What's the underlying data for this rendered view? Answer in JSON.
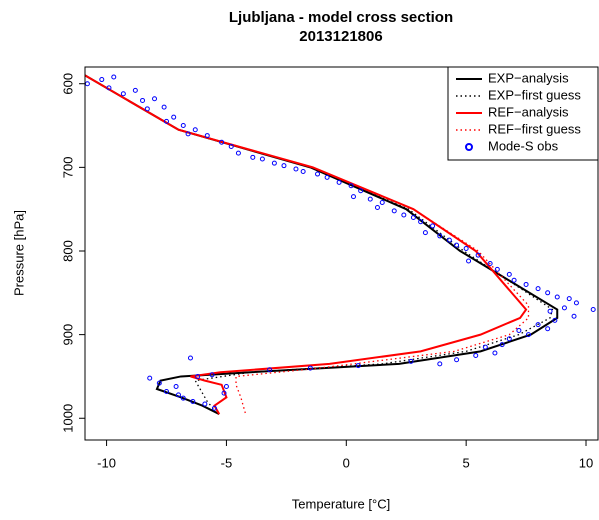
{
  "chart_data": {
    "type": "line",
    "title": "Ljubljana - model cross section",
    "subtitle": "2013121806",
    "x_label": "Temperature [°C]",
    "y_label": "Pressure [hPa]",
    "xlim": [
      -10.9,
      10.5
    ],
    "ylim": [
      1026,
      580
    ],
    "xticks": [
      -10,
      -5,
      0,
      5,
      10
    ],
    "yticks": [
      600,
      700,
      800,
      900,
      1000
    ],
    "legend": "top-right",
    "series": [
      {
        "name": "EXP−analysis",
        "color": "#000000",
        "style": "solid",
        "x": [
          -10.9,
          -7,
          -1.5,
          2.5,
          4.75,
          8.8,
          8.8,
          7.7,
          5.6,
          2.2,
          -4,
          -6.9,
          -7.75,
          -7.9,
          -6.9,
          -6,
          -5.3
        ],
        "y": [
          590,
          655,
          700,
          750,
          800,
          870,
          880,
          900,
          920,
          935,
          945,
          950,
          955,
          965,
          975,
          985,
          995
        ]
      },
      {
        "name": "EXP−first guess",
        "color": "#000000",
        "style": "dotted",
        "x": [
          -10.9,
          -7,
          -1.5,
          2.6,
          4.9,
          8.6,
          8.5,
          7.2,
          5,
          1.5,
          -4,
          -6.3,
          -6.1,
          -5.8,
          -5.5
        ],
        "y": [
          590,
          655,
          700,
          750,
          800,
          870,
          880,
          900,
          920,
          935,
          945,
          955,
          965,
          980,
          990
        ]
      },
      {
        "name": "REF−analysis",
        "color": "#ff0000",
        "style": "solid",
        "x": [
          -10.9,
          -7,
          -1.4,
          2.8,
          5.4,
          7.5,
          7.25,
          5.6,
          3.1,
          -0.7,
          -5.25,
          -6.5,
          -5.9,
          -5.2,
          -5,
          -5.5,
          -5.3
        ],
        "y": [
          590,
          655,
          700,
          750,
          800,
          870,
          880,
          900,
          920,
          935,
          945,
          950,
          955,
          960,
          975,
          985,
          995
        ]
      },
      {
        "name": "REF−first guess",
        "color": "#ff0000",
        "style": "dotted",
        "x": [
          -10.9,
          -7,
          -1.4,
          2.8,
          5.5,
          7.6,
          7.6,
          6.8,
          4.5,
          -1.1,
          -4.6,
          -4.6,
          -4.4,
          -4.2
        ],
        "y": [
          590,
          655,
          700,
          750,
          800,
          865,
          880,
          900,
          920,
          940,
          950,
          960,
          975,
          995
        ]
      },
      {
        "name": "Mode-S obs",
        "color": "#0000ff",
        "style": "points",
        "x": [
          -10.8,
          -10.2,
          -9.7,
          -9.9,
          -9.3,
          -8.8,
          -8.5,
          -8.0,
          -8.3,
          -7.6,
          -7.2,
          -7.5,
          -6.8,
          -6.3,
          -6.6,
          -5.8,
          -5.2,
          -4.8,
          -4.5,
          -3.9,
          -3.5,
          -3.0,
          -2.6,
          -2.1,
          -1.8,
          -1.2,
          -0.8,
          -0.3,
          0.2,
          0.6,
          0.3,
          1.0,
          1.5,
          1.3,
          2.0,
          2.4,
          2.8,
          3.1,
          3.6,
          3.3,
          3.9,
          4.3,
          4.6,
          5.0,
          5.5,
          5.1,
          6.0,
          6.3,
          6.8,
          7.0,
          7.5,
          8.0,
          8.4,
          8.8,
          9.3,
          9.6,
          10.3,
          9.1,
          8.5,
          9.5,
          8.7,
          8.0,
          8.4,
          7.2,
          7.6,
          6.8,
          6.5,
          5.8,
          6.2,
          5.4,
          4.6,
          3.9,
          2.7,
          0.5,
          -1.5,
          -3.2,
          -6.5,
          -8.2,
          -7.8,
          -7.1,
          -7.5,
          -7.0,
          -6.8,
          -6.4,
          -5.9,
          -5.5,
          -6.2,
          -5.0,
          -5.1,
          -5.6
        ],
        "y": [
          600,
          595,
          592,
          605,
          612,
          608,
          620,
          618,
          630,
          628,
          640,
          645,
          650,
          655,
          660,
          662,
          670,
          675,
          683,
          688,
          690,
          695,
          698,
          702,
          705,
          708,
          712,
          718,
          722,
          728,
          735,
          738,
          742,
          748,
          752,
          757,
          760,
          765,
          770,
          778,
          782,
          787,
          793,
          797,
          805,
          812,
          815,
          822,
          828,
          835,
          840,
          845,
          850,
          855,
          857,
          862,
          870,
          868,
          872,
          878,
          883,
          888,
          893,
          895,
          900,
          905,
          912,
          915,
          922,
          925,
          930,
          935,
          932,
          937,
          940,
          942,
          928,
          952,
          958,
          962,
          968,
          972,
          976,
          980,
          983,
          988,
          950,
          962,
          970,
          948
        ]
      }
    ]
  }
}
